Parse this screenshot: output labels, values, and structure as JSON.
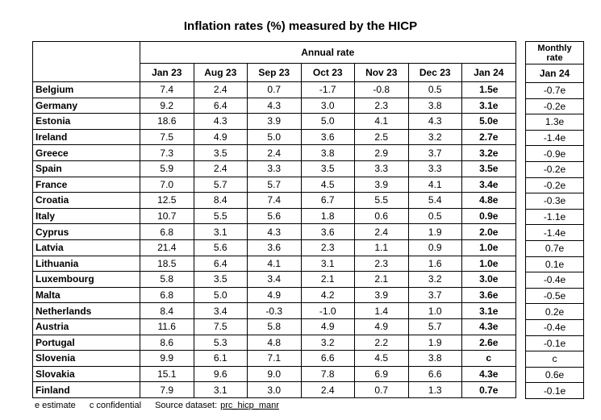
{
  "title": "Inflation rates (%) measured by the HICP",
  "annual_header": "Annual rate",
  "monthly_header_line1": "Monthly",
  "monthly_header_line2": "rate",
  "months": [
    "Jan 23",
    "Aug 23",
    "Sep 23",
    "Oct 23",
    "Nov 23",
    "Dec 23",
    "Jan 24"
  ],
  "monthly_month": "Jan 24",
  "rows": [
    {
      "country": "Belgium",
      "values": [
        "7.4",
        "2.4",
        "0.7",
        "-1.7",
        "-0.8",
        "0.5",
        "1.5e"
      ],
      "monthly": "-0.7e"
    },
    {
      "country": "Germany",
      "values": [
        "9.2",
        "6.4",
        "4.3",
        "3.0",
        "2.3",
        "3.8",
        "3.1e"
      ],
      "monthly": "-0.2e"
    },
    {
      "country": "Estonia",
      "values": [
        "18.6",
        "4.3",
        "3.9",
        "5.0",
        "4.1",
        "4.3",
        "5.0e"
      ],
      "monthly": "1.3e"
    },
    {
      "country": "Ireland",
      "values": [
        "7.5",
        "4.9",
        "5.0",
        "3.6",
        "2.5",
        "3.2",
        "2.7e"
      ],
      "monthly": "-1.4e"
    },
    {
      "country": "Greece",
      "values": [
        "7.3",
        "3.5",
        "2.4",
        "3.8",
        "2.9",
        "3.7",
        "3.2e"
      ],
      "monthly": "-0.9e"
    },
    {
      "country": "Spain",
      "values": [
        "5.9",
        "2.4",
        "3.3",
        "3.5",
        "3.3",
        "3.3",
        "3.5e"
      ],
      "monthly": "-0.2e"
    },
    {
      "country": "France",
      "values": [
        "7.0",
        "5.7",
        "5.7",
        "4.5",
        "3.9",
        "4.1",
        "3.4e"
      ],
      "monthly": "-0.2e"
    },
    {
      "country": "Croatia",
      "values": [
        "12.5",
        "8.4",
        "7.4",
        "6.7",
        "5.5",
        "5.4",
        "4.8e"
      ],
      "monthly": "-0.3e"
    },
    {
      "country": "Italy",
      "values": [
        "10.7",
        "5.5",
        "5.6",
        "1.8",
        "0.6",
        "0.5",
        "0.9e"
      ],
      "monthly": "-1.1e"
    },
    {
      "country": "Cyprus",
      "values": [
        "6.8",
        "3.1",
        "4.3",
        "3.6",
        "2.4",
        "1.9",
        "2.0e"
      ],
      "monthly": "-1.4e"
    },
    {
      "country": "Latvia",
      "values": [
        "21.4",
        "5.6",
        "3.6",
        "2.3",
        "1.1",
        "0.9",
        "1.0e"
      ],
      "monthly": "0.7e"
    },
    {
      "country": "Lithuania",
      "values": [
        "18.5",
        "6.4",
        "4.1",
        "3.1",
        "2.3",
        "1.6",
        "1.0e"
      ],
      "monthly": "0.1e"
    },
    {
      "country": "Luxembourg",
      "values": [
        "5.8",
        "3.5",
        "3.4",
        "2.1",
        "2.1",
        "3.2",
        "3.0e"
      ],
      "monthly": "-0.4e"
    },
    {
      "country": "Malta",
      "values": [
        "6.8",
        "5.0",
        "4.9",
        "4.2",
        "3.9",
        "3.7",
        "3.6e"
      ],
      "monthly": "-0.5e"
    },
    {
      "country": "Netherlands",
      "values": [
        "8.4",
        "3.4",
        "-0.3",
        "-1.0",
        "1.4",
        "1.0",
        "3.1e"
      ],
      "monthly": "0.2e"
    },
    {
      "country": "Austria",
      "values": [
        "11.6",
        "7.5",
        "5.8",
        "4.9",
        "4.9",
        "5.7",
        "4.3e"
      ],
      "monthly": "-0.4e"
    },
    {
      "country": "Portugal",
      "values": [
        "8.6",
        "5.3",
        "4.8",
        "3.2",
        "2.2",
        "1.9",
        "2.6e"
      ],
      "monthly": "-0.1e"
    },
    {
      "country": "Slovenia",
      "values": [
        "9.9",
        "6.1",
        "7.1",
        "6.6",
        "4.5",
        "3.8",
        "c"
      ],
      "monthly": "c"
    },
    {
      "country": "Slovakia",
      "values": [
        "15.1",
        "9.6",
        "9.0",
        "7.8",
        "6.9",
        "6.6",
        "4.3e"
      ],
      "monthly": "0.6e"
    },
    {
      "country": "Finland",
      "values": [
        "7.9",
        "3.1",
        "3.0",
        "2.4",
        "0.7",
        "1.3",
        "0.7e"
      ],
      "monthly": "-0.1e"
    }
  ],
  "footer": {
    "estimate": "e estimate",
    "confidential": "c confidential",
    "source_label": "Source dataset:",
    "source_link": "prc_hicp_manr"
  }
}
